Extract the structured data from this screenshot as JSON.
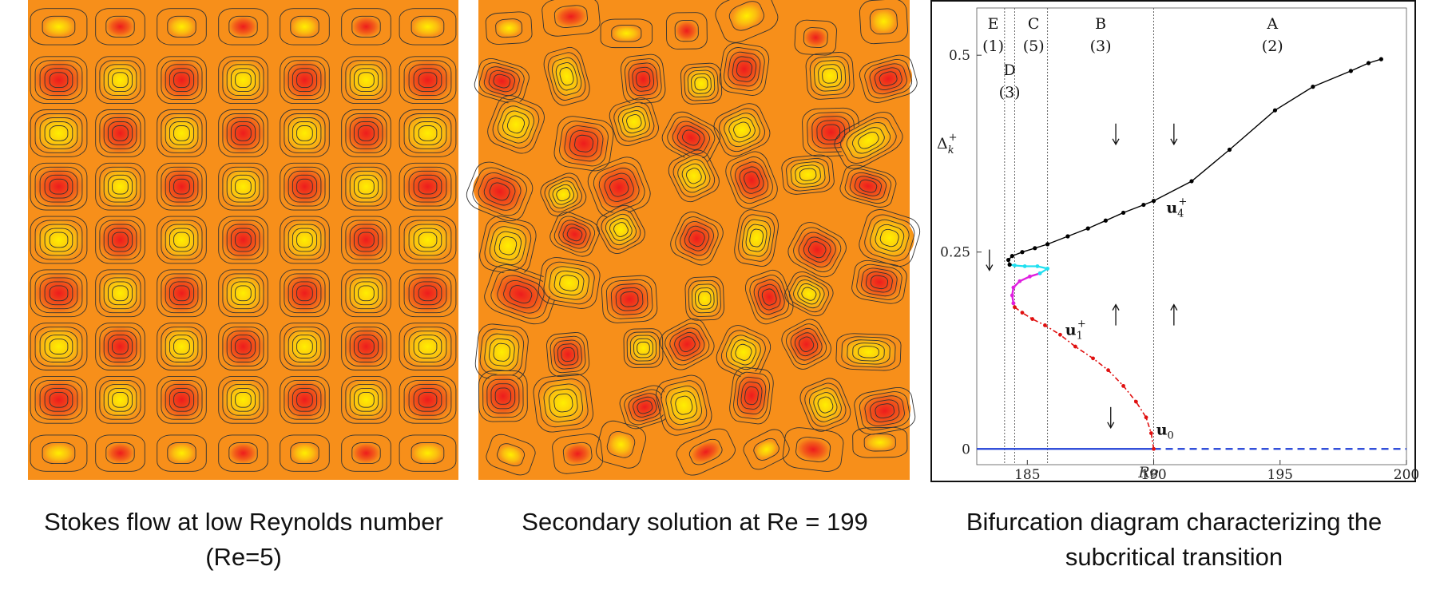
{
  "colors": {
    "background_orange": "#f78f1a",
    "cell_red": "#ee1c1c",
    "cell_yellow": "#ffee00",
    "contour": "#333333",
    "branch_u0": "#1f3fd6",
    "branch_u1": "#e01010",
    "branch_magenta": "#e020e0",
    "branch_cyan": "#20e0f0",
    "branch_u4": "#000000"
  },
  "captions": {
    "stokes": "Stokes flow at low Reynolds number (Re=5)",
    "secondary": "Secondary solution at Re = 199",
    "bifurcation": "Bifurcation diagram characterizing the subcritical transition"
  },
  "chart_data": {
    "type": "line",
    "xlabel": "Re",
    "ylabel": "Δ_k^+",
    "xlim": [
      183,
      200
    ],
    "ylim": [
      -0.02,
      0.56
    ],
    "xticks": [
      185,
      190,
      195,
      200
    ],
    "yticks": [
      0,
      0.25,
      0.5
    ],
    "ytick_labels": [
      "0",
      "0.25",
      "0.5"
    ],
    "regions": [
      {
        "letter": "E",
        "count": "(1)"
      },
      {
        "letter": "D",
        "count": "(3)"
      },
      {
        "letter": "C",
        "count": "(5)"
      },
      {
        "letter": "B",
        "count": "(3)"
      },
      {
        "letter": "A",
        "count": "(2)"
      }
    ],
    "region_boundaries": [
      184.1,
      184.5,
      185.8,
      190.0
    ],
    "series": [
      {
        "name": "u0",
        "label_main": "u",
        "label_sub": "0",
        "label_sup": "",
        "style": "solid-then-dashed",
        "x": [
          183,
          190,
          200
        ],
        "y": [
          0,
          0,
          0
        ]
      },
      {
        "name": "u1+",
        "label_main": "u",
        "label_sub": "1",
        "label_sup": "+",
        "style": "dash-dot",
        "x": [
          190.0,
          189.9,
          189.7,
          189.3,
          188.8,
          188.2,
          187.6,
          186.9,
          186.3,
          185.7,
          185.2,
          184.8,
          184.5,
          184.45
        ],
        "y": [
          0.0,
          0.02,
          0.04,
          0.06,
          0.08,
          0.1,
          0.115,
          0.13,
          0.145,
          0.157,
          0.165,
          0.173,
          0.18,
          0.185
        ]
      },
      {
        "name": "magenta",
        "style": "solid",
        "x": [
          184.45,
          184.4,
          184.45,
          184.7,
          185.1,
          185.5
        ],
        "y": [
          0.185,
          0.195,
          0.205,
          0.213,
          0.219,
          0.223
        ]
      },
      {
        "name": "cyan",
        "style": "solid",
        "x": [
          185.5,
          185.8,
          185.4,
          184.9,
          184.5,
          184.3
        ],
        "y": [
          0.223,
          0.229,
          0.232,
          0.232,
          0.233,
          0.234
        ]
      },
      {
        "name": "u4+",
        "label_main": "u",
        "label_sub": "4",
        "label_sup": "+",
        "style": "solid",
        "x": [
          184.3,
          184.25,
          184.4,
          184.8,
          185.3,
          185.8,
          186.6,
          187.4,
          188.1,
          188.8,
          189.6,
          190.0,
          191.5,
          193.0,
          194.8,
          196.3,
          197.8,
          198.5,
          199.0
        ],
        "y": [
          0.234,
          0.24,
          0.245,
          0.25,
          0.255,
          0.26,
          0.27,
          0.28,
          0.29,
          0.3,
          0.31,
          0.315,
          0.34,
          0.38,
          0.43,
          0.46,
          0.48,
          0.49,
          0.495
        ]
      }
    ],
    "arrows": [
      {
        "x": 188.5,
        "y": 0.4,
        "dir": "down"
      },
      {
        "x": 190.8,
        "y": 0.4,
        "dir": "down"
      },
      {
        "x": 183.5,
        "y": 0.24,
        "dir": "down"
      },
      {
        "x": 188.5,
        "y": 0.17,
        "dir": "up"
      },
      {
        "x": 190.8,
        "y": 0.17,
        "dir": "up"
      },
      {
        "x": 188.3,
        "y": 0.04,
        "dir": "down"
      }
    ]
  }
}
